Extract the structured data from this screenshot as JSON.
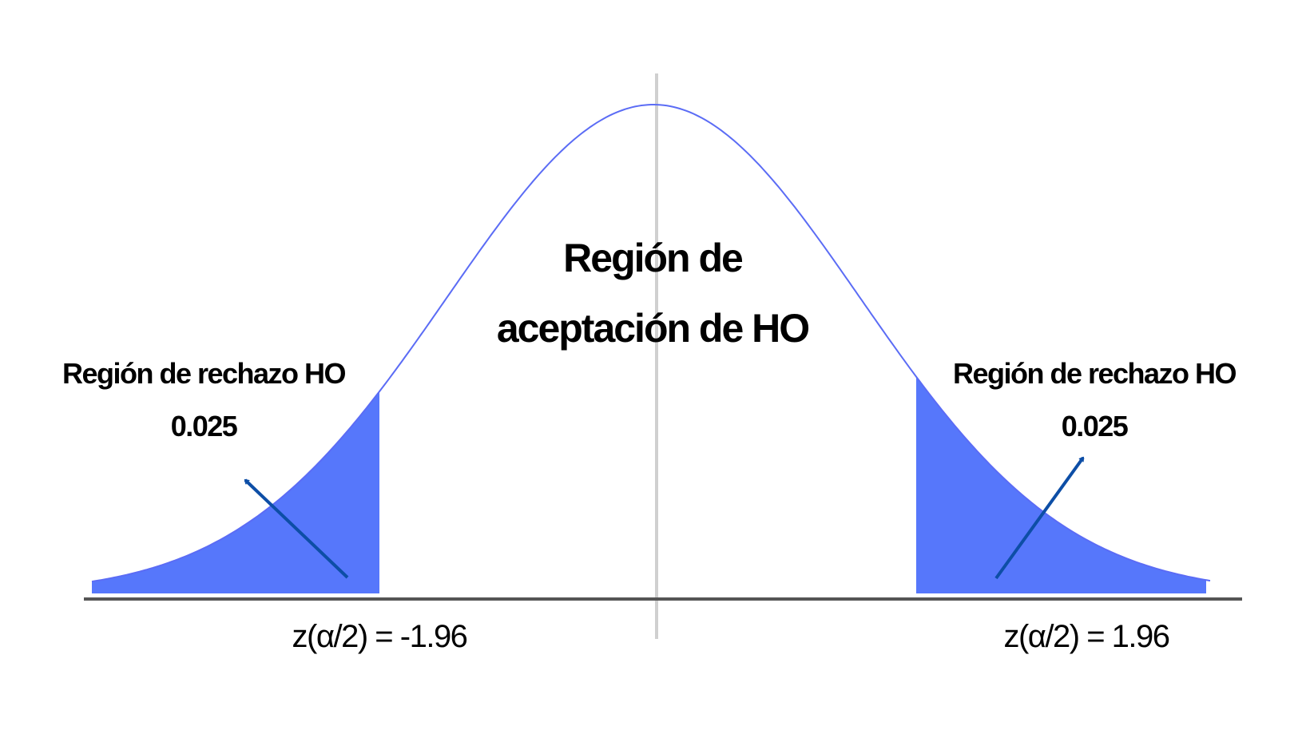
{
  "acceptance_region": {
    "line1": "Región de",
    "line2": "aceptación de HO"
  },
  "left_tail": {
    "label": "Región de rechazo HO",
    "probability": "0.025",
    "z_label": "z(α/2) = -1.96"
  },
  "right_tail": {
    "label": "Región de rechazo HO",
    "probability": "0.025",
    "z_label": "z(α/2) = 1.96"
  },
  "colors": {
    "curve": "#5b6cf5",
    "tail_fill": "#5677fb",
    "arrow": "#0d4ea6",
    "axis": "#555555",
    "center_line": "#d0d0d0"
  }
}
